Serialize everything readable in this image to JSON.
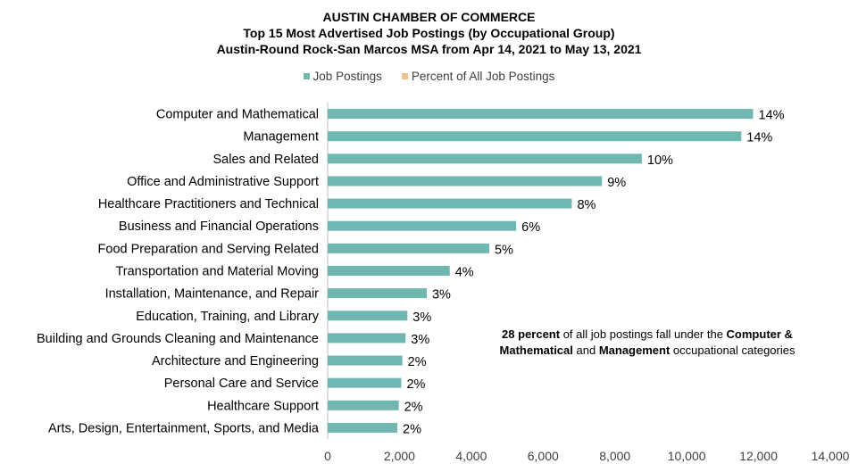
{
  "titles": {
    "line1": "AUSTIN CHAMBER OF COMMERCE",
    "line2": "Top 15 Most Advertised Job Postings (by Occupational Group)",
    "line3": "Austin-Round Rock-San Marcos MSA from Apr 14, 2021 to May 13, 2021"
  },
  "legend": [
    {
      "label": "Job Postings",
      "color": "#70b7b2"
    },
    {
      "label": "Percent of All Job Postings",
      "color": "#f4c08a"
    }
  ],
  "note": {
    "part1": "28 percent",
    "part2": " of all job postings fall under the ",
    "part3": "Computer &",
    "part4": "Mathematical",
    "part5": " and ",
    "part6": "Management",
    "part7": " occupational categories"
  },
  "chart_data": {
    "type": "bar",
    "orientation": "horizontal",
    "title": "Top 15 Most Advertised Job Postings (by Occupational Group)",
    "categories": [
      "Computer and Mathematical",
      "Management",
      "Sales and Related",
      "Office and Administrative Support",
      "Healthcare Practitioners and Technical",
      "Business and Financial Operations",
      "Food Preparation and Serving Related",
      "Transportation and Material Moving",
      "Installation, Maintenance, and Repair",
      "Education, Training, and Library",
      "Building and Grounds Cleaning and Maintenance",
      "Architecture and Engineering",
      "Personal Care and Service",
      "Healthcare Support",
      "Arts, Design, Entertainment, Sports, and Media"
    ],
    "series": [
      {
        "name": "Job Postings",
        "values": [
          11850,
          11520,
          8750,
          7640,
          6800,
          5250,
          4500,
          3400,
          2760,
          2220,
          2170,
          2080,
          2050,
          1980,
          1940
        ]
      },
      {
        "name": "Percent of All Job Postings",
        "values": [
          "14%",
          "14%",
          "10%",
          "9%",
          "8%",
          "6%",
          "5%",
          "4%",
          "3%",
          "3%",
          "3%",
          "2%",
          "2%",
          "2%",
          "2%"
        ]
      }
    ],
    "xlim": [
      0,
      14000
    ],
    "xticks": [
      0,
      2000,
      4000,
      6000,
      8000,
      10000,
      12000,
      14000
    ],
    "xtick_labels": [
      "0",
      "2,000",
      "4,000",
      "6,000",
      "8,000",
      "10,000",
      "12,000",
      "14,000"
    ],
    "legend_position": "top",
    "grid": false,
    "bar_color": "#70b7b2"
  }
}
